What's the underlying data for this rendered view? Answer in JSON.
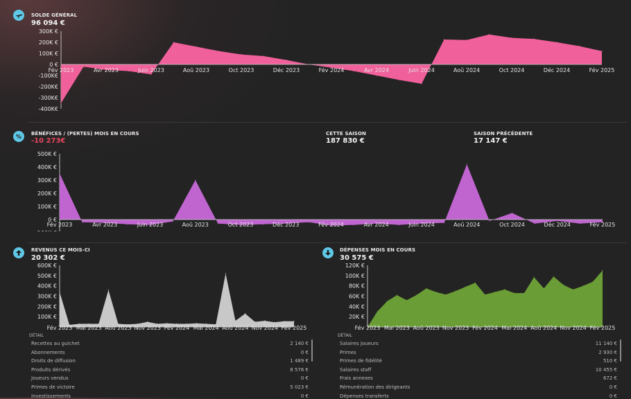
{
  "balance": {
    "label": "SOLDE GÉNÉRAL",
    "value": "96 094 €",
    "icon": "airplane-icon",
    "chart_data": {
      "type": "area",
      "color": "#f0609a",
      "x": [
        "Fév 2023",
        "Mar 2023",
        "Avr 2023",
        "Mai 2023",
        "Juin 2023",
        "Juil 2023",
        "Aoû 2023",
        "Sep 2023",
        "Oct 2023",
        "Nov 2023",
        "Déc 2023",
        "Jan 2024",
        "Fév 2024",
        "Mar 2024",
        "Avr 2024",
        "Mai 2024",
        "Juin 2024",
        "Juil 2024",
        "Aoû 2024",
        "Sep 2024",
        "Oct 2024",
        "Nov 2024",
        "Déc 2024",
        "Jan 2025",
        "Fév 2025"
      ],
      "values": [
        -350000,
        -20000,
        -50000,
        -60000,
        -90000,
        200000,
        160000,
        120000,
        90000,
        75000,
        40000,
        0,
        -30000,
        -60000,
        -100000,
        -140000,
        -175000,
        225000,
        220000,
        270000,
        240000,
        230000,
        200000,
        165000,
        120000
      ],
      "ticks": [
        "Fév 2023",
        "Avr 2023",
        "Juin 2023",
        "Aoû 2023",
        "Oct 2023",
        "Déc 2023",
        "Fév 2024",
        "Avr 2024",
        "Juin 2024",
        "Aoû 2024",
        "Oct 2024",
        "Déc 2024",
        "Fév 2025"
      ],
      "ylim": [
        -400000,
        300000
      ],
      "yticks": [
        "300K €",
        "200K €",
        "100K €",
        "0 €",
        "-100K€",
        "-200K€",
        "-300K€",
        "-400K€"
      ]
    }
  },
  "profit": {
    "label": "BÉNÉFICES / (PERTES) MOIS EN COURS",
    "value": "-10 273€",
    "icon": "percent-icon",
    "season_label": "CETTE SAISON",
    "season_value": "187 830 €",
    "prev_label": "SAISON PRÉCÉDENTE",
    "prev_value": "17 147 €",
    "chart_data": {
      "type": "area",
      "color": "#c065d0",
      "x": [
        "Fév 2023",
        "Mar 2023",
        "Avr 2023",
        "Mai 2023",
        "Juin 2023",
        "Juil 2023",
        "Aoû 2023",
        "Sep 2023",
        "Oct 2023",
        "Nov 2023",
        "Déc 2023",
        "Jan 2024",
        "Fév 2024",
        "Mar 2024",
        "Avr 2024",
        "Mai 2024",
        "Juin 2024",
        "Juil 2024",
        "Aoû 2024",
        "Sep 2024",
        "Oct 2024",
        "Nov 2024",
        "Déc 2024",
        "Jan 2025",
        "Fév 2025"
      ],
      "values": [
        350000,
        -20000,
        -25000,
        -35000,
        -40000,
        -15000,
        300000,
        -30000,
        -40000,
        -35000,
        -30000,
        -20000,
        -45000,
        -40000,
        -30000,
        -40000,
        -30000,
        -25000,
        420000,
        -10000,
        50000,
        -30000,
        -10000,
        -30000,
        -20000
      ],
      "ticks": [
        "Fév 2023",
        "Avr 2023",
        "Juin 2023",
        "Aoû 2023",
        "Oct 2023",
        "Déc 2023",
        "Fév 2024",
        "Avr 2024",
        "Juin 2024",
        "Aoû 2024",
        "Oct 2024",
        "Déc 2024",
        "Fév 2025"
      ],
      "ylim": [
        -100000,
        500000
      ],
      "yticks": [
        "500K €",
        "400K €",
        "300K €",
        "200K €",
        "100K €",
        "0 €",
        "-100K €"
      ]
    }
  },
  "revenue": {
    "label": "REVENUS CE MOIS-CI",
    "value": "20 302 €",
    "icon": "arrow-up-icon",
    "chart_data": {
      "type": "area",
      "color": "#c8c8c8",
      "x": [
        "Fév 2023",
        "Mar 2023",
        "Avr 2023",
        "Mai 2023",
        "Juin 2023",
        "Juil 2023",
        "Aoû 2023",
        "Sep 2023",
        "Oct 2023",
        "Nov 2023",
        "Déc 2023",
        "Jan 2024",
        "Fév 2024",
        "Mar 2024",
        "Avr 2024",
        "Mai 2024",
        "Juin 2024",
        "Juil 2024",
        "Aoû 2024",
        "Sep 2024",
        "Oct 2024",
        "Nov 2024",
        "Déc 2024",
        "Jan 2025",
        "Fév 2025"
      ],
      "values": [
        340000,
        20000,
        30000,
        30000,
        30000,
        360000,
        30000,
        25000,
        30000,
        50000,
        30000,
        35000,
        30000,
        30000,
        35000,
        30000,
        25000,
        520000,
        60000,
        130000,
        50000,
        60000,
        45000,
        55000,
        55000
      ],
      "ticks": [
        "Fév 2023",
        "Mai 2023",
        "Aoû 2023",
        "Nov 2023",
        "Fév 2024",
        "Mai 2024",
        "Aoû 2024",
        "Nov 2024",
        "Fév 2025"
      ],
      "ylim": [
        0,
        600000
      ],
      "yticks": [
        "600K €",
        "500K €",
        "400K €",
        "300K €",
        "200K €",
        "100K €"
      ]
    },
    "detail_title": "DÉTAIL",
    "details": [
      {
        "label": "Recettes au guichet",
        "value": "2 140 €"
      },
      {
        "label": "Abonnements",
        "value": "0 €"
      },
      {
        "label": "Droits de diffusion",
        "value": "1 489 €"
      },
      {
        "label": "Produits dérivés",
        "value": "8 576 €"
      },
      {
        "label": "Joueurs vendus",
        "value": "0 €"
      },
      {
        "label": "Primes de victoire",
        "value": "5 023 €"
      },
      {
        "label": "Investissements",
        "value": "0 €"
      }
    ]
  },
  "expenses": {
    "label": "DÉPENSES MOIS EN COURS",
    "value": "30 575 €",
    "icon": "arrow-down-icon",
    "chart_data": {
      "type": "area",
      "color": "#6a9d35",
      "x": [
        "Fév 2023",
        "Mar 2023",
        "Avr 2023",
        "Mai 2023",
        "Juin 2023",
        "Juil 2023",
        "Aoû 2023",
        "Sep 2023",
        "Oct 2023",
        "Nov 2023",
        "Déc 2023",
        "Jan 2024",
        "Fév 2024",
        "Mar 2024",
        "Avr 2024",
        "Mai 2024",
        "Juin 2024",
        "Juil 2024",
        "Aoû 2024",
        "Sep 2024",
        "Oct 2024",
        "Nov 2024",
        "Déc 2024",
        "Jan 2025",
        "Fév 2025"
      ],
      "values": [
        0,
        30000,
        50000,
        62000,
        52000,
        62000,
        75000,
        68000,
        63000,
        70000,
        78000,
        86000,
        63000,
        68000,
        73000,
        66000,
        66000,
        97000,
        75000,
        98000,
        82000,
        73000,
        80000,
        88000,
        110000
      ],
      "ticks": [
        "Fév 2023",
        "Mai 2023",
        "Aoû 2023",
        "Nov 2023",
        "Fév 2024",
        "Mai 2024",
        "Aoû 2024",
        "Nov 2024",
        "Fév 2025"
      ],
      "ylim": [
        0,
        120000
      ],
      "yticks": [
        "120K €",
        "100K €",
        "80K €",
        "60K €",
        "40K €",
        "20K €"
      ]
    },
    "detail_title": "DÉTAIL",
    "details": [
      {
        "label": "Salaires joueurs",
        "value": "11 140 €"
      },
      {
        "label": "Primes",
        "value": "2 930 €"
      },
      {
        "label": "Primes de fidélité",
        "value": "510 €"
      },
      {
        "label": "Salaires staff",
        "value": "10 455 €"
      },
      {
        "label": "Frais annexes",
        "value": "672 €"
      },
      {
        "label": "Rémunération des dirigeants",
        "value": "0 €"
      },
      {
        "label": "Dépenses transferts",
        "value": "0 €"
      }
    ]
  }
}
